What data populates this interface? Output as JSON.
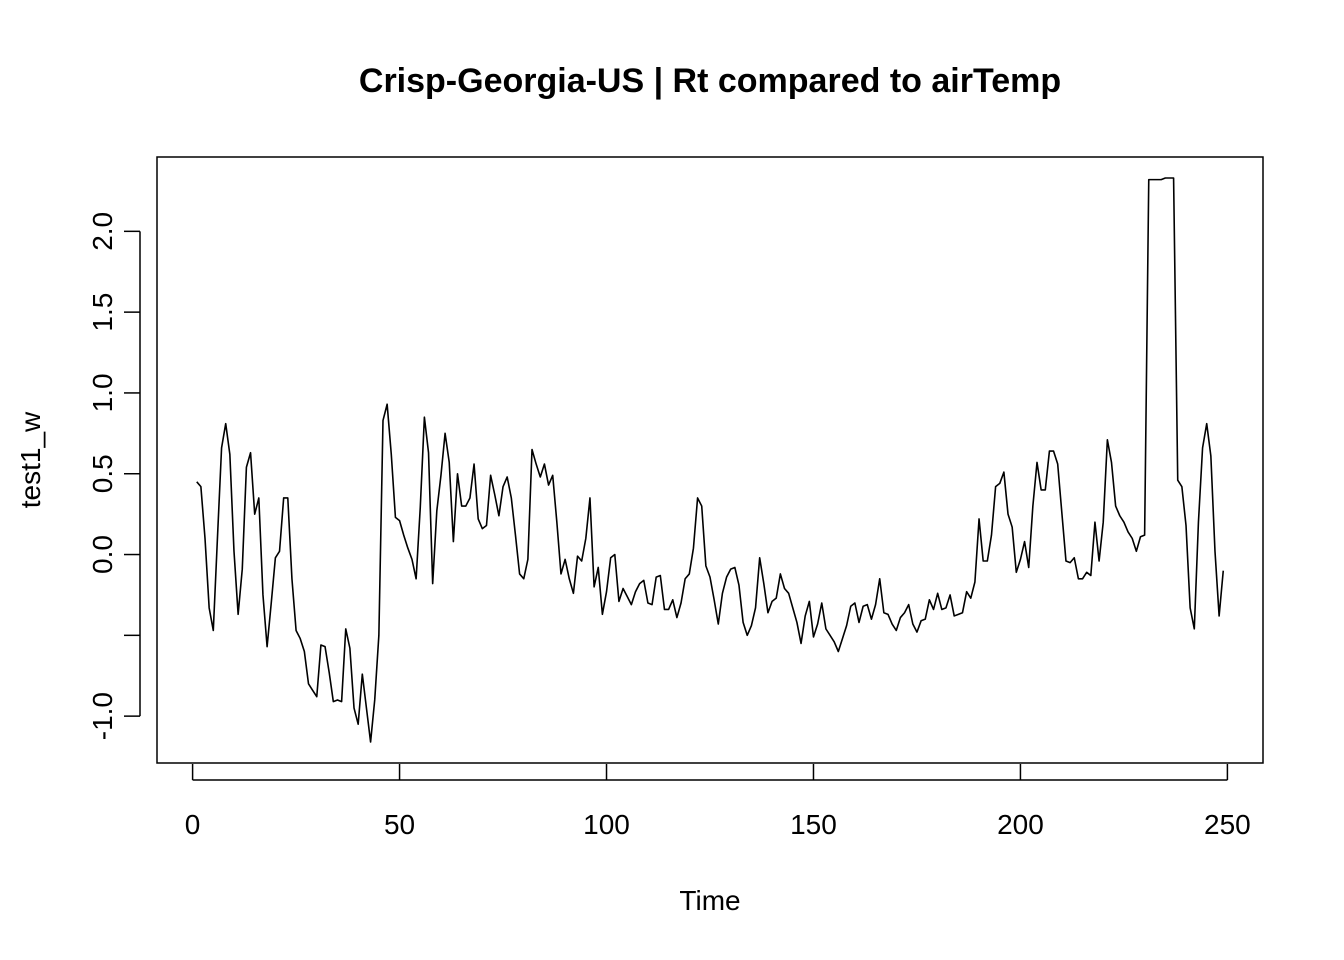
{
  "chart_data": {
    "type": "line",
    "title": "Crisp-Georgia-US | Rt compared to airTemp",
    "xlabel": "Time",
    "ylabel": "test1_w",
    "xlim": [
      -8.6,
      258.6
    ],
    "ylim": [
      -1.29,
      2.46
    ],
    "grid": false,
    "x_ticks": [
      {
        "value": 0,
        "label": "0"
      },
      {
        "value": 50,
        "label": "50"
      },
      {
        "value": 100,
        "label": "100"
      },
      {
        "value": 150,
        "label": "150"
      },
      {
        "value": 200,
        "label": "200"
      },
      {
        "value": 250,
        "label": "250"
      }
    ],
    "y_ticks": [
      {
        "value": -1.0,
        "label": "-1.0"
      },
      {
        "value": -0.5,
        "label": ""
      },
      {
        "value": 0.0,
        "label": "0.0"
      },
      {
        "value": 0.5,
        "label": "0.5"
      },
      {
        "value": 1.0,
        "label": "1.0"
      },
      {
        "value": 1.5,
        "label": "1.5"
      },
      {
        "value": 2.0,
        "label": "2.0"
      }
    ],
    "series": [
      {
        "color": "#000000",
        "x_start": 1,
        "values": [
          0.45,
          0.42,
          0.1,
          -0.33,
          -0.47,
          0.1,
          0.66,
          0.81,
          0.62,
          0.02,
          -0.37,
          -0.09,
          0.54,
          0.63,
          0.25,
          0.35,
          -0.25,
          -0.57,
          -0.3,
          -0.02,
          0.02,
          0.35,
          0.35,
          -0.15,
          -0.47,
          -0.52,
          -0.6,
          -0.8,
          -0.84,
          -0.88,
          -0.56,
          -0.57,
          -0.73,
          -0.91,
          -0.9,
          -0.91,
          -0.46,
          -0.58,
          -0.95,
          -1.05,
          -0.74,
          -0.95,
          -1.16,
          -0.9,
          -0.5,
          0.83,
          0.93,
          0.62,
          0.23,
          0.21,
          0.12,
          0.04,
          -0.03,
          -0.15,
          0.29,
          0.85,
          0.63,
          -0.18,
          0.27,
          0.49,
          0.75,
          0.57,
          0.08,
          0.5,
          0.3,
          0.3,
          0.35,
          0.56,
          0.22,
          0.16,
          0.18,
          0.49,
          0.37,
          0.24,
          0.42,
          0.48,
          0.35,
          0.12,
          -0.12,
          -0.15,
          -0.03,
          0.65,
          0.56,
          0.48,
          0.56,
          0.43,
          0.49,
          0.2,
          -0.12,
          -0.03,
          -0.15,
          -0.24,
          -0.01,
          -0.04,
          0.1,
          0.35,
          -0.2,
          -0.08,
          -0.37,
          -0.23,
          -0.02,
          0.0,
          -0.29,
          -0.21,
          -0.26,
          -0.31,
          -0.23,
          -0.18,
          -0.16,
          -0.3,
          -0.31,
          -0.14,
          -0.13,
          -0.34,
          -0.34,
          -0.28,
          -0.39,
          -0.3,
          -0.15,
          -0.12,
          0.04,
          0.35,
          0.3,
          -0.07,
          -0.14,
          -0.28,
          -0.43,
          -0.24,
          -0.14,
          -0.09,
          -0.08,
          -0.19,
          -0.42,
          -0.5,
          -0.44,
          -0.33,
          -0.02,
          -0.18,
          -0.36,
          -0.29,
          -0.27,
          -0.12,
          -0.21,
          -0.24,
          -0.33,
          -0.42,
          -0.55,
          -0.38,
          -0.29,
          -0.51,
          -0.43,
          -0.3,
          -0.46,
          -0.5,
          -0.54,
          -0.6,
          -0.52,
          -0.44,
          -0.32,
          -0.3,
          -0.42,
          -0.32,
          -0.31,
          -0.4,
          -0.31,
          -0.15,
          -0.36,
          -0.37,
          -0.43,
          -0.47,
          -0.39,
          -0.36,
          -0.31,
          -0.43,
          -0.48,
          -0.41,
          -0.4,
          -0.28,
          -0.34,
          -0.24,
          -0.34,
          -0.33,
          -0.25,
          -0.38,
          -0.37,
          -0.36,
          -0.23,
          -0.27,
          -0.17,
          0.22,
          -0.04,
          -0.04,
          0.12,
          0.42,
          0.44,
          0.51,
          0.25,
          0.17,
          -0.11,
          -0.03,
          0.08,
          -0.08,
          0.3,
          0.57,
          0.4,
          0.4,
          0.64,
          0.64,
          0.56,
          0.26,
          -0.04,
          -0.05,
          -0.02,
          -0.15,
          -0.15,
          -0.11,
          -0.13,
          0.2,
          -0.04,
          0.2,
          0.71,
          0.57,
          0.3,
          0.24,
          0.2,
          0.14,
          0.1,
          0.02,
          0.11,
          0.12,
          2.32,
          2.32,
          2.32,
          2.32,
          2.33,
          2.33,
          2.33,
          0.46,
          0.42,
          0.18,
          -0.33,
          -0.46,
          0.2,
          0.66,
          0.81,
          0.61,
          0.02,
          -0.38,
          -0.1
        ]
      }
    ]
  }
}
